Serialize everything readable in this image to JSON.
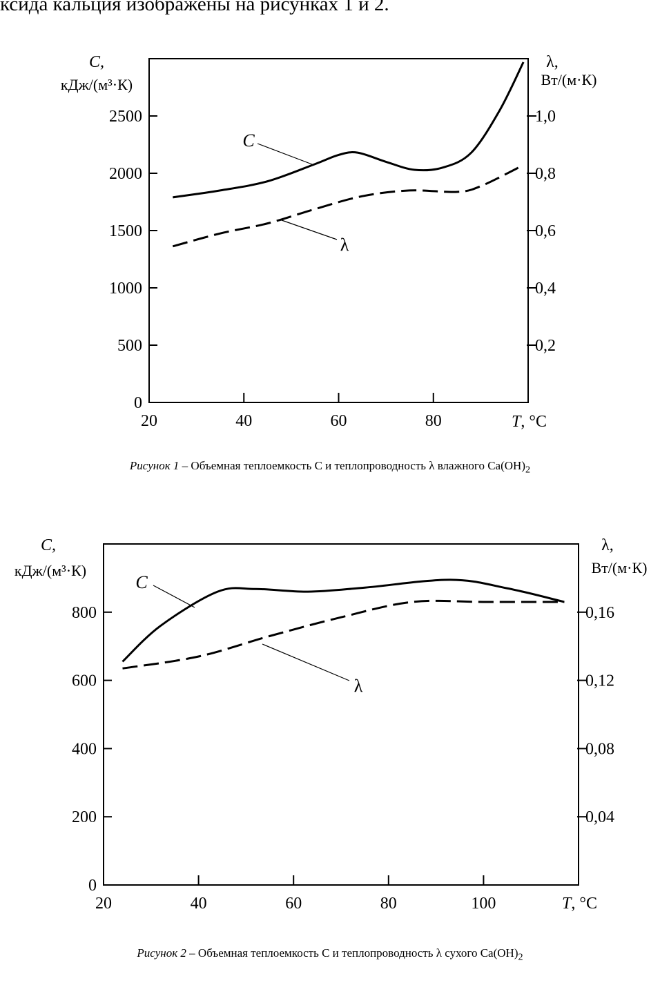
{
  "intro_text": "ксида кальция изображены на рисунках 1 и 2.",
  "chart_data": [
    {
      "type": "line",
      "caption_prefix": "Рисунок 1",
      "caption_text": "– Объемная теплоемкость С и теплопроводность λ влажного Ca(OH)",
      "caption_sub": "2",
      "xlabel": "T, °C",
      "xlim": [
        20,
        100
      ],
      "x_ticks": [
        "20",
        "40",
        "60",
        "80"
      ],
      "y_left_label_1": "C,",
      "y_left_label_2": "кДж/(м³·К)",
      "y_left_lim": [
        0,
        3000
      ],
      "y_left_ticks": [
        "0",
        "500",
        "1000",
        "1500",
        "2000",
        "2500"
      ],
      "y_right_label_1": "λ,",
      "y_right_label_2": "Вт/(м·К)",
      "y_right_lim": [
        0,
        1.2
      ],
      "y_right_ticks": [
        "0,2",
        "0,4",
        "0,6",
        "0,8",
        "1,0"
      ],
      "series": [
        {
          "name": "C",
          "axis": "left",
          "style": "solid",
          "x": [
            25,
            35,
            45,
            55,
            60,
            64,
            70,
            76,
            82,
            88,
            94,
            99
          ],
          "y": [
            1790,
            1850,
            1930,
            2080,
            2160,
            2180,
            2100,
            2030,
            2050,
            2180,
            2550,
            2970
          ]
        },
        {
          "name": "λ",
          "axis": "right",
          "style": "dashed",
          "x": [
            25,
            35,
            45,
            55,
            65,
            75,
            85,
            90,
            98
          ],
          "y": [
            0.545,
            0.59,
            0.625,
            0.675,
            0.72,
            0.74,
            0.735,
            0.755,
            0.82
          ]
        }
      ]
    },
    {
      "type": "line",
      "caption_prefix": "Рисунок 2",
      "caption_text": "– Объемная теплоемкость С и теплопроводность λ сухого Ca(OH)",
      "caption_sub": "2",
      "xlabel": "T, °C",
      "xlim": [
        20,
        120
      ],
      "x_ticks": [
        "20",
        "40",
        "60",
        "80",
        "100"
      ],
      "y_left_label_1": "C,",
      "y_left_label_2": "кДж/(м³·К)",
      "y_left_lim": [
        0,
        1000
      ],
      "y_left_ticks": [
        "0",
        "200",
        "400",
        "600",
        "800"
      ],
      "y_right_label_1": "λ,",
      "y_right_label_2": "Вт/(м·К)",
      "y_right_lim": [
        0,
        0.2
      ],
      "y_right_ticks": [
        "0,04",
        "0,08",
        "0,12",
        "0,16"
      ],
      "series": [
        {
          "name": "C",
          "axis": "left",
          "style": "solid",
          "x": [
            24,
            32,
            44,
            52,
            63,
            75,
            93,
            105,
            117
          ],
          "y": [
            655,
            760,
            860,
            868,
            860,
            872,
            895,
            870,
            830
          ]
        },
        {
          "name": "λ",
          "axis": "right",
          "style": "dashed",
          "x": [
            24,
            40,
            55,
            70,
            85,
            100,
            117
          ],
          "y": [
            0.127,
            0.134,
            0.146,
            0.157,
            0.166,
            0.166,
            0.166
          ]
        }
      ]
    }
  ]
}
